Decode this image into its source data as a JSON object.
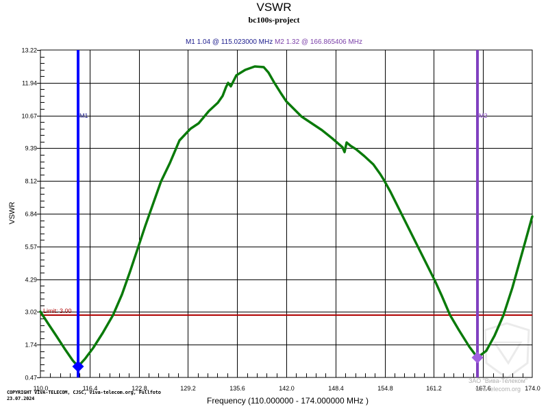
{
  "header": {
    "title": "VSWR",
    "subtitle": "bc100s-project"
  },
  "markers": {
    "m1": {
      "label": "M1",
      "readout": "M1  1.04 @ 115.023000 MHz",
      "value": 1.04,
      "freq_mhz": 115.023,
      "color": "#0000ff"
    },
    "m2": {
      "label": "M2",
      "readout": "M2  1.32 @ 166.865406 MHz",
      "value": 1.32,
      "freq_mhz": 166.865406,
      "color": "#8040c0"
    }
  },
  "limit": {
    "label": "Limit: 3.00",
    "value": 3.0,
    "color": "#b00000"
  },
  "axes": {
    "ylabel": "VSWR",
    "xlabel": "Frequency (110.000000 - 174.000000 MHz )",
    "yticks": [
      "13.22",
      "11.94",
      "10.67",
      "9.39",
      "8.12",
      "6.84",
      "5.57",
      "4.29",
      "3.02",
      "1.74",
      "0.47"
    ],
    "xticks": [
      "110.0",
      "116.4",
      "122.8",
      "129.2",
      "135.6",
      "142.0",
      "148.4",
      "154.8",
      "161.2",
      "167.6",
      "174.0"
    ]
  },
  "footer": {
    "copyright_line1": "COPYRIGHT VIVA-TELECOM, CJSC, Viva-telecom.org, Fullfoto",
    "copyright_line2": "23.07.2024",
    "watermark_line1": "ЗАО \"Вива-Телеком\"",
    "watermark_line2": "viva-telecom.org"
  },
  "colors": {
    "trace": "#0a7a0a",
    "grid": "#000000",
    "limit": "#b00000",
    "m1": "#0000ff",
    "m2": "#8040c0"
  },
  "chart_data": {
    "type": "line",
    "title": "VSWR",
    "subtitle": "bc100s-project",
    "xlabel": "Frequency (110.000000 - 174.000000 MHz )",
    "ylabel": "VSWR",
    "xlim": [
      110.0,
      174.0
    ],
    "ylim": [
      0.47,
      13.22
    ],
    "grid": true,
    "legend": "none",
    "x_ticks": [
      110.0,
      116.4,
      122.8,
      129.2,
      135.6,
      142.0,
      148.4,
      154.8,
      161.2,
      167.6,
      174.0
    ],
    "y_ticks": [
      13.22,
      11.94,
      10.67,
      9.39,
      8.12,
      6.84,
      5.57,
      4.29,
      3.02,
      1.74,
      0.47
    ],
    "series": [
      {
        "name": "VSWR",
        "x": [
          110.0,
          112.0,
          114.0,
          115.02,
          117.0,
          119.5,
          122.8,
          125.7,
          128.2,
          130.6,
          133.1,
          133.7,
          134.9,
          137.3,
          138.4,
          139.7,
          141.3,
          143.3,
          146.0,
          148.6,
          148.9,
          149.2,
          150.5,
          152.7,
          154.0,
          156.3,
          160.7,
          162.7,
          166.87,
          170.2,
          174.0
        ],
        "y": [
          3.02,
          2.3,
          1.5,
          1.04,
          1.6,
          2.9,
          5.6,
          8.1,
          9.7,
          10.4,
          11.4,
          11.9,
          12.2,
          12.6,
          12.58,
          11.95,
          11.2,
          10.6,
          10.1,
          9.4,
          9.2,
          9.6,
          9.35,
          8.75,
          8.15,
          6.9,
          4.3,
          2.95,
          1.32,
          2.95,
          6.8
        ]
      }
    ],
    "annotations": [
      {
        "type": "hline",
        "label": "Limit: 3.00",
        "y": 3.0
      },
      {
        "type": "marker",
        "label": "M1",
        "x": 115.023,
        "y": 1.04
      },
      {
        "type": "marker",
        "label": "M2",
        "x": 166.865406,
        "y": 1.32
      }
    ]
  }
}
